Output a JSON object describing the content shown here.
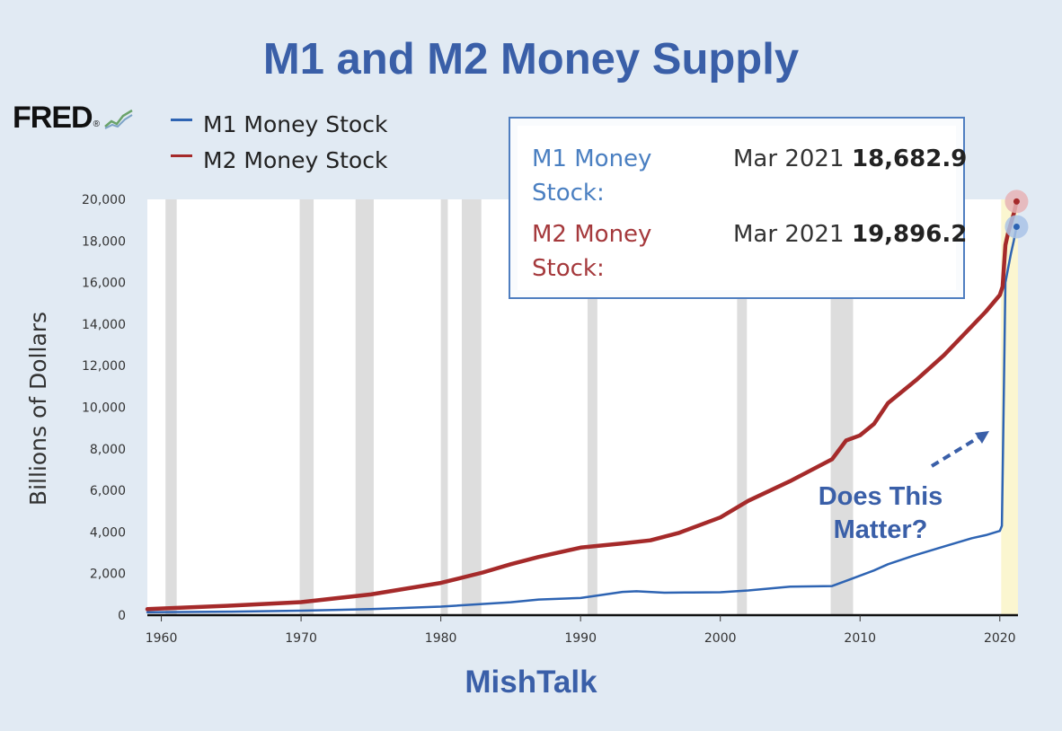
{
  "page": {
    "title": "M1 and M2 Money Supply",
    "footer": "MishTalk",
    "logo_text": "FRED",
    "logo_icon": "fred-sparkline-icon"
  },
  "tooltip": {
    "rows": [
      {
        "name": "M1 Money Stock:",
        "date": "Mar 2021",
        "value": "18,682.9",
        "color": "#4a7fc1"
      },
      {
        "name": "M2 Money Stock:",
        "date": "Mar 2021",
        "value": "19,896.2",
        "color": "#a5393c"
      }
    ]
  },
  "annotation": {
    "line1": "Does This",
    "line2": "Matter?"
  },
  "colors": {
    "m1": "#2e64b3",
    "m2": "#a52a2a",
    "accent_text": "#3a5fa8",
    "recession": "#dddddd",
    "highlight": "#fbf6d0"
  },
  "chart_data": {
    "type": "line",
    "title": "M1 and M2 Money Supply",
    "ylabel": "Billions of Dollars",
    "xlabel": "",
    "xlim": [
      1959,
      2021.3
    ],
    "ylim": [
      0,
      20000
    ],
    "x_ticks": [
      1960,
      1970,
      1980,
      1990,
      2000,
      2010,
      2020
    ],
    "y_ticks": [
      0,
      2000,
      4000,
      6000,
      8000,
      10000,
      12000,
      14000,
      16000,
      18000,
      20000
    ],
    "y_tick_labels": [
      "0",
      "2,000",
      "4,000",
      "6,000",
      "8,000",
      "10,000",
      "12,000",
      "14,000",
      "16,000",
      "18,000",
      "20,000"
    ],
    "grid": false,
    "legend_position": "top-left",
    "recession_shading": [
      [
        1960.3,
        1961.1
      ],
      [
        1969.9,
        1970.9
      ],
      [
        1973.9,
        1975.2
      ],
      [
        1980.0,
        1980.5
      ],
      [
        1981.5,
        1982.9
      ],
      [
        1990.5,
        1991.2
      ],
      [
        2001.2,
        2001.9
      ],
      [
        2007.9,
        2009.5
      ]
    ],
    "highlight_period": [
      2020.1,
      2021.3
    ],
    "series": [
      {
        "name": "M1 Money Stock",
        "color": "#2e64b3",
        "x": [
          1959,
          1965,
          1970,
          1975,
          1980,
          1985,
          1987,
          1990,
          1993,
          1994,
          1996,
          1998,
          2000,
          2002,
          2005,
          2008,
          2009,
          2011,
          2012,
          2014,
          2016,
          2018,
          2019,
          2020.0,
          2020.15,
          2020.25,
          2020.4,
          2020.6,
          2020.8,
          2021.0,
          2021.2
        ],
        "y": [
          140,
          168,
          215,
          290,
          410,
          620,
          750,
          825,
          1120,
          1150,
          1080,
          1095,
          1100,
          1190,
          1370,
          1400,
          1650,
          2150,
          2450,
          2900,
          3300,
          3700,
          3850,
          4050,
          4300,
          9000,
          16000,
          16700,
          17400,
          18000,
          18683
        ]
      },
      {
        "name": "M2 Money Stock",
        "color": "#a52a2a",
        "x": [
          1959,
          1965,
          1970,
          1975,
          1980,
          1983,
          1985,
          1987,
          1990,
          1993,
          1995,
          1997,
          2000,
          2002,
          2005,
          2008,
          2009,
          2010,
          2011,
          2012,
          2014,
          2016,
          2018,
          2019,
          2020.0,
          2020.2,
          2020.4,
          2020.6,
          2021.0,
          2021.2
        ],
        "y": [
          290,
          460,
          625,
          1000,
          1550,
          2050,
          2450,
          2800,
          3250,
          3450,
          3600,
          3950,
          4700,
          5500,
          6450,
          7500,
          8400,
          8650,
          9200,
          10200,
          11300,
          12500,
          13900,
          14600,
          15400,
          15800,
          17800,
          18400,
          19300,
          19896
        ]
      }
    ],
    "tooltip": {
      "date": "Mar 2021",
      "M1": 18682.9,
      "M2": 19896.2
    },
    "annotations": [
      "Does This Matter?"
    ]
  }
}
